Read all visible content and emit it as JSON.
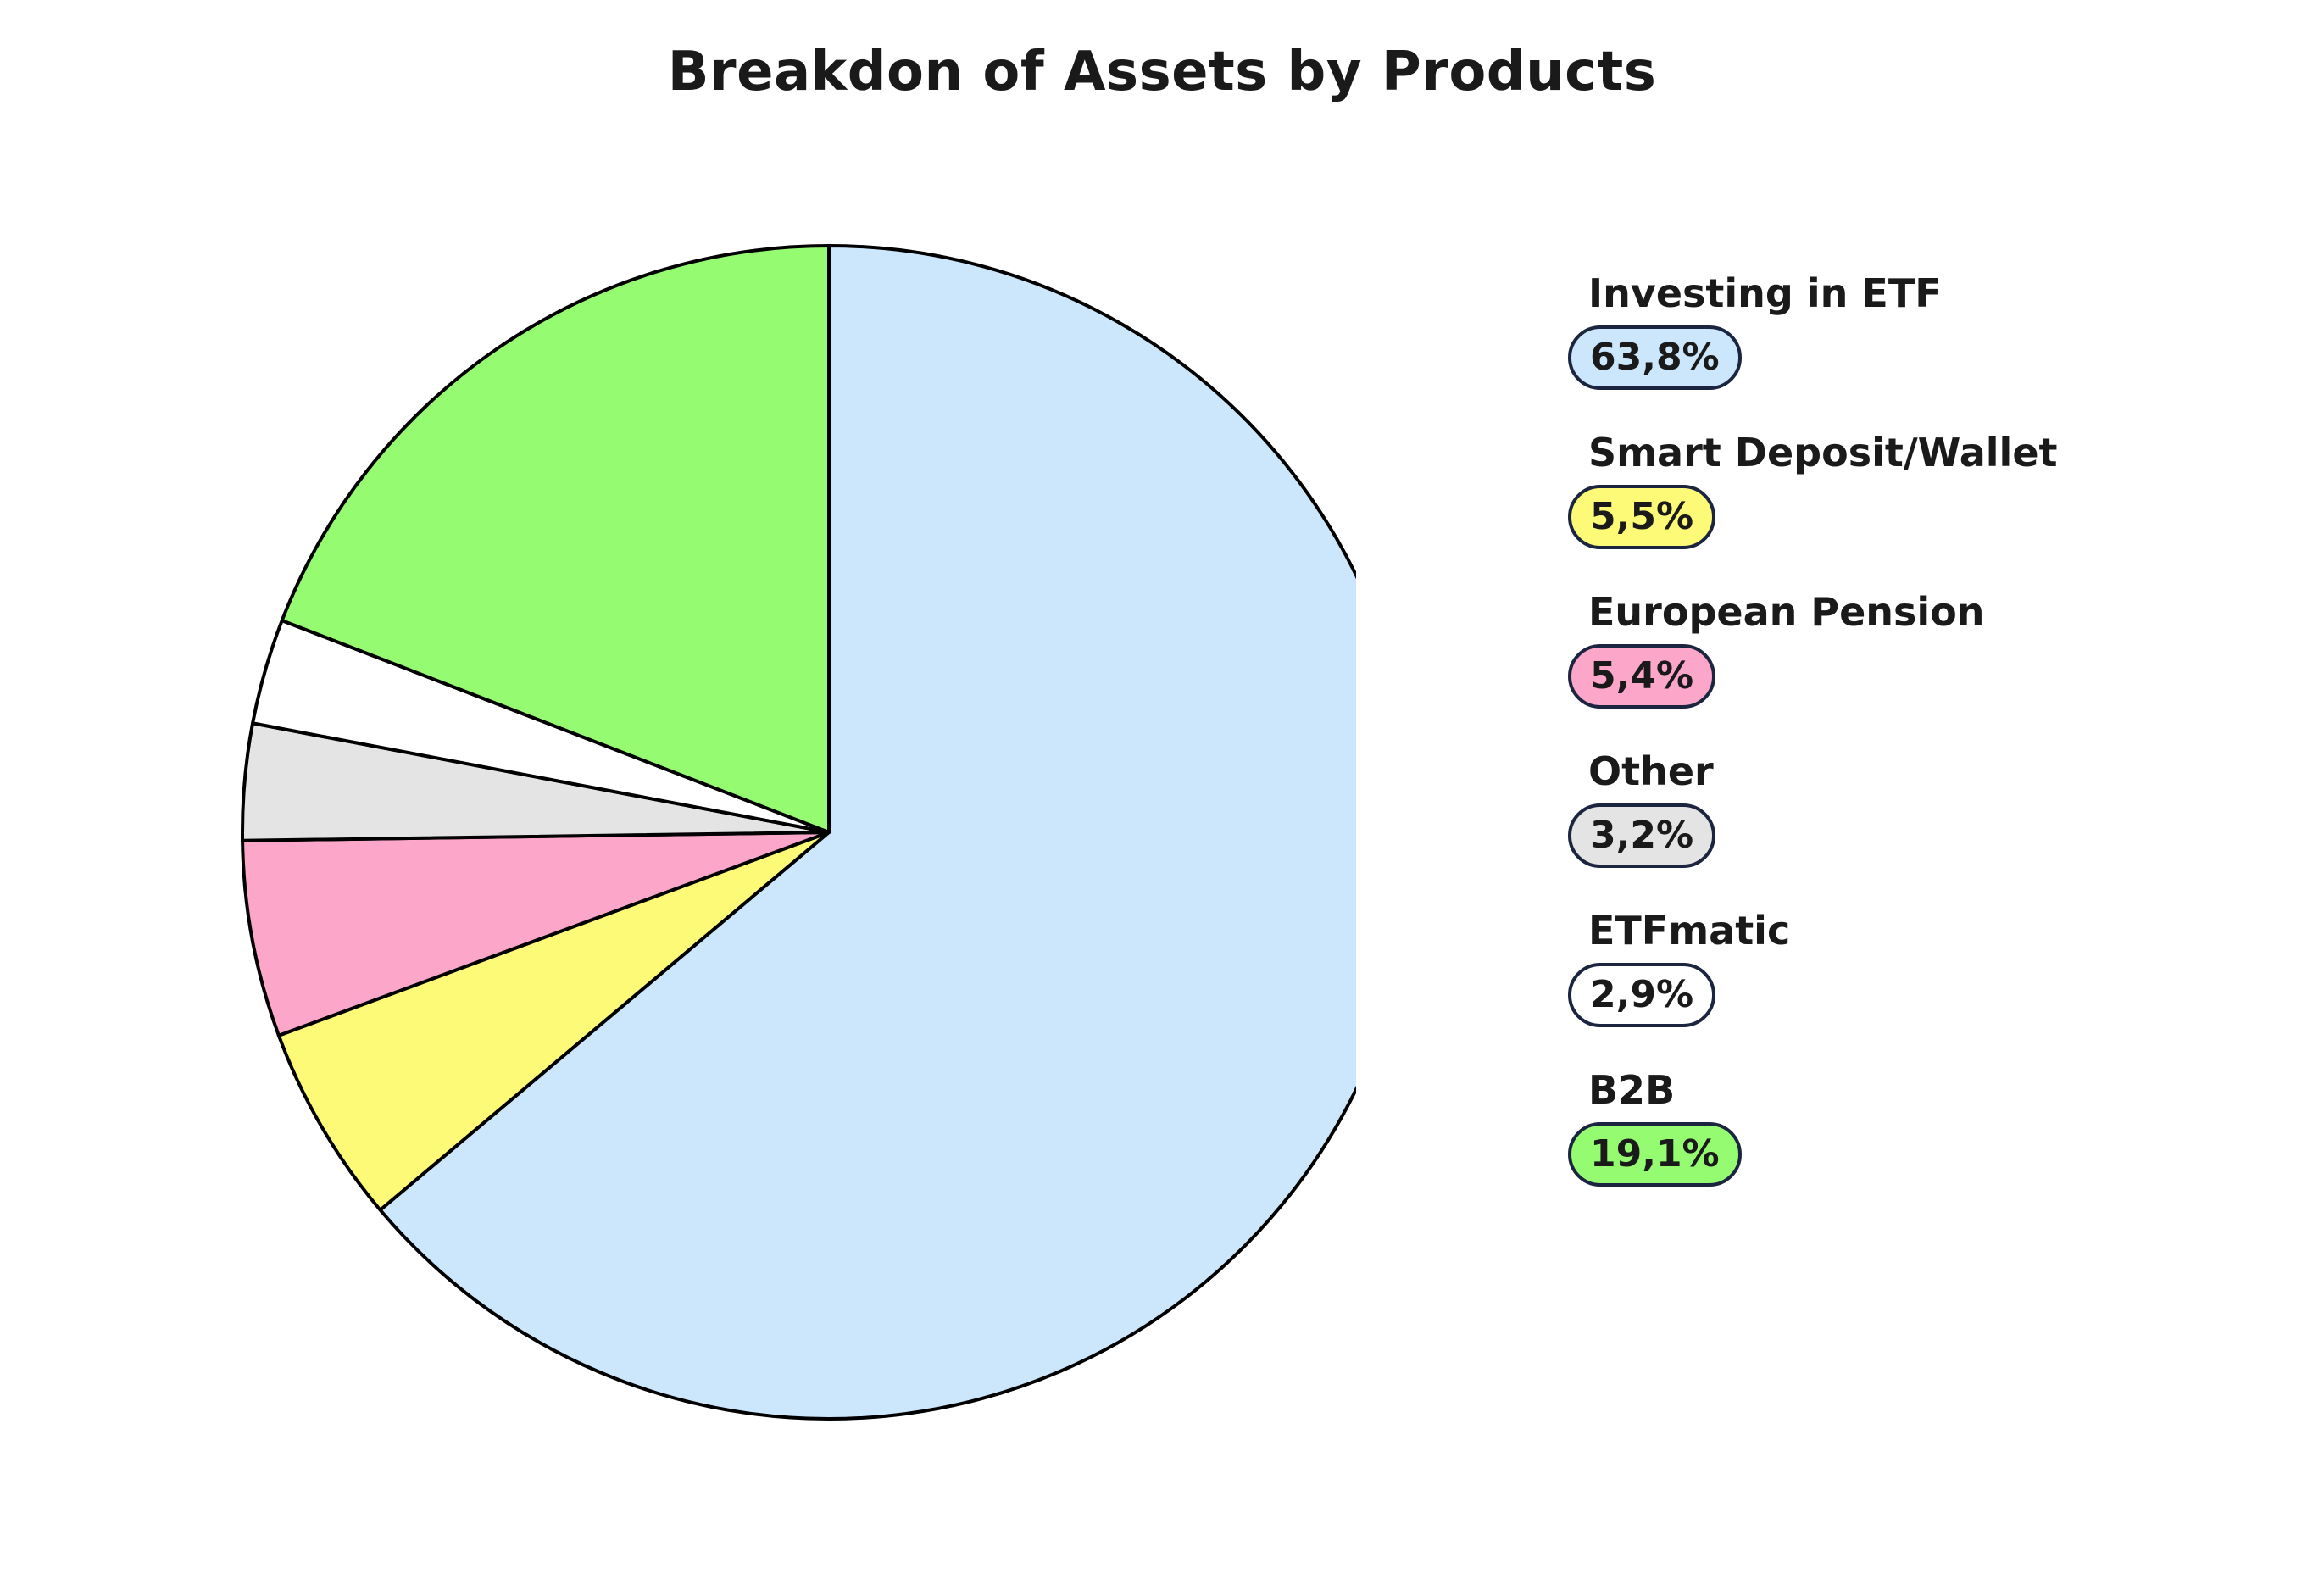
{
  "chart_data": {
    "type": "pie",
    "title": "Breakdon of Assets by Products",
    "slices": [
      {
        "label": "Investing in ETF",
        "value": 63.8,
        "display": "63,8%",
        "color": "#cce6fc"
      },
      {
        "label": "Smart Deposit/Wallet",
        "value": 5.5,
        "display": "5,5%",
        "color": "#fcfa76"
      },
      {
        "label": "European Pension",
        "value": 5.4,
        "display": "5,4%",
        "color": "#fca6c9"
      },
      {
        "label": "Other",
        "value": 3.2,
        "display": "3,2%",
        "color": "#e4e4e4"
      },
      {
        "label": "ETFmatic",
        "value": 2.9,
        "display": "2,9%",
        "color": "#ffffff"
      },
      {
        "label": "B2B",
        "value": 19.1,
        "display": "19,1%",
        "color": "#95fc72"
      }
    ],
    "start_angle": "12 o'clock",
    "direction": "clockwise",
    "legend_position": "right",
    "outline_color": "#000000",
    "badge_border_color": "#1c2540"
  }
}
